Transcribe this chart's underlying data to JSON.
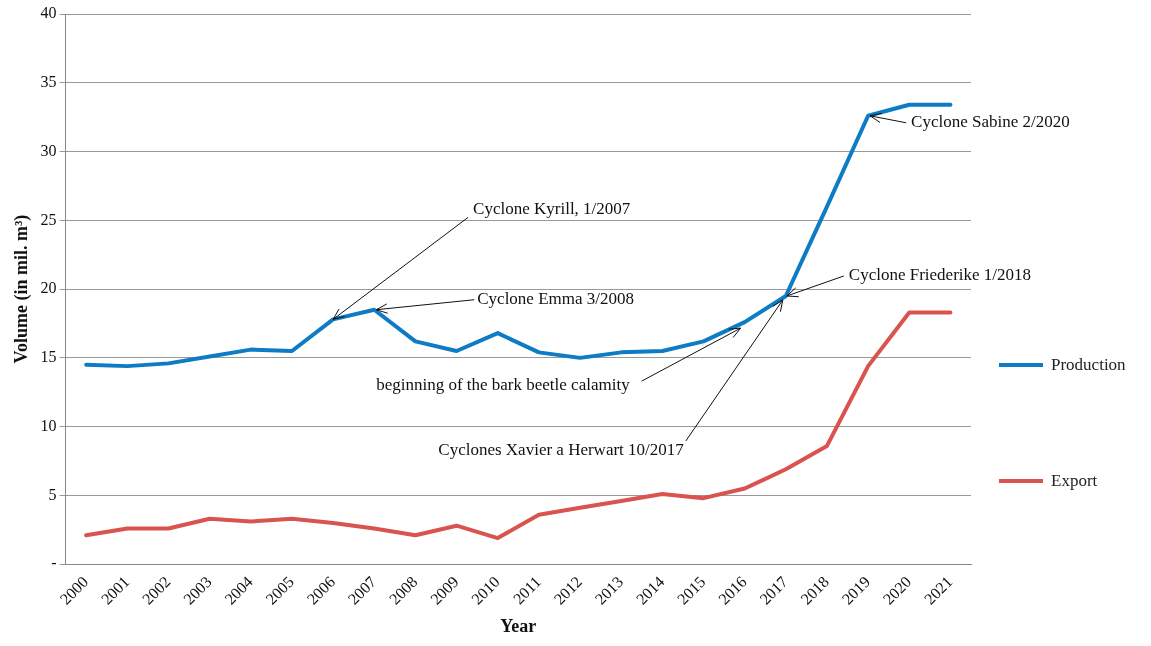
{
  "chart_data": {
    "type": "line",
    "xlabel": "Year",
    "ylabel": "Volume (in mil. m³)",
    "categories": [
      "2000",
      "2001",
      "2002",
      "2003",
      "2004",
      "2005",
      "2006",
      "2007",
      "2008",
      "2009",
      "2010",
      "2011",
      "2012",
      "2013",
      "2014",
      "2015",
      "2016",
      "2017",
      "2018",
      "2019",
      "2020",
      "2021"
    ],
    "series": [
      {
        "name": "Production",
        "color": "#0e7cc4",
        "values": [
          14.5,
          14.4,
          14.6,
          15.1,
          15.6,
          15.5,
          17.8,
          18.5,
          16.2,
          15.5,
          16.8,
          15.4,
          15.0,
          15.4,
          15.5,
          16.2,
          17.6,
          19.5,
          26.0,
          32.6,
          33.4,
          33.4
        ]
      },
      {
        "name": "Export",
        "color": "#d9534f",
        "values": [
          2.1,
          2.6,
          2.6,
          3.3,
          3.1,
          3.3,
          3.0,
          2.6,
          2.1,
          2.8,
          1.9,
          3.6,
          4.1,
          4.6,
          5.1,
          4.8,
          5.5,
          6.9,
          8.6,
          14.4,
          18.3,
          18.3
        ]
      }
    ],
    "ylim": [
      0,
      40
    ],
    "yticks": [
      {
        "value": 0,
        "label": "-"
      },
      5,
      10,
      15,
      20,
      25,
      30,
      35,
      40
    ],
    "grid": "y",
    "legend": "right",
    "marker": "none",
    "line_style": "solid",
    "annotations": [
      {
        "text": "Cyclone Kyrill, 1/2007",
        "x": "2006",
        "y": 17.8
      },
      {
        "text": "Cyclone Emma 3/2008",
        "x": "2007",
        "y": 18.5
      },
      {
        "text": "Cyclone Sabine 2/2020",
        "x": "2019",
        "y": 32.6
      },
      {
        "text": "Cyclone Friederike 1/2018",
        "x": "2017",
        "y": 19.5
      },
      {
        "text": "beginning of the bark beetle calamity",
        "x": "2016",
        "y": 17.6
      },
      {
        "text": "Cyclones Xavier a Herwart 10/2017",
        "x": "2017",
        "y": 19.5
      }
    ]
  }
}
